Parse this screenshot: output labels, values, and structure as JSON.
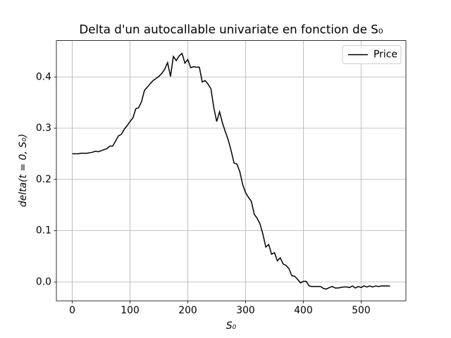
{
  "chart_data": {
    "type": "line",
    "title": "Delta d'un autocallable univariate en fonction de S₀",
    "x_label": "S₀",
    "y_label": "delta(t = 0, S₀)",
    "x": [
      0,
      5,
      10,
      15,
      20,
      25,
      30,
      35,
      40,
      45,
      50,
      55,
      60,
      65,
      70,
      75,
      80,
      85,
      90,
      95,
      100,
      105,
      110,
      115,
      120,
      125,
      130,
      135,
      140,
      145,
      150,
      155,
      160,
      165,
      170,
      175,
      180,
      185,
      190,
      195,
      200,
      205,
      210,
      215,
      220,
      225,
      230,
      235,
      240,
      245,
      250,
      255,
      260,
      265,
      270,
      275,
      280,
      285,
      290,
      295,
      300,
      305,
      310,
      315,
      320,
      325,
      330,
      335,
      340,
      345,
      350,
      355,
      360,
      365,
      370,
      375,
      380,
      385,
      390,
      395,
      400,
      405,
      410,
      415,
      420,
      425,
      430,
      435,
      440,
      445,
      450,
      455,
      460,
      465,
      470,
      475,
      480,
      485,
      490,
      495,
      500,
      505,
      510,
      515,
      520,
      525,
      530,
      535,
      540,
      545,
      550
    ],
    "series": [
      {
        "name": "Price",
        "color": "#000000",
        "values": [
          0.25,
          0.25,
          0.25,
          0.251,
          0.251,
          0.251,
          0.252,
          0.253,
          0.255,
          0.254,
          0.256,
          0.258,
          0.26,
          0.265,
          0.265,
          0.275,
          0.285,
          0.288,
          0.298,
          0.305,
          0.313,
          0.32,
          0.338,
          0.34,
          0.352,
          0.374,
          0.38,
          0.387,
          0.393,
          0.397,
          0.401,
          0.407,
          0.415,
          0.428,
          0.401,
          0.44,
          0.432,
          0.441,
          0.446,
          0.427,
          0.434,
          0.418,
          0.42,
          0.419,
          0.419,
          0.39,
          0.393,
          0.386,
          0.377,
          0.34,
          0.313,
          0.332,
          0.31,
          0.293,
          0.277,
          0.256,
          0.232,
          0.23,
          0.215,
          0.19,
          0.174,
          0.165,
          0.157,
          0.132,
          0.124,
          0.113,
          0.093,
          0.068,
          0.073,
          0.054,
          0.057,
          0.041,
          0.047,
          0.035,
          0.032,
          0.026,
          0.012,
          0.011,
          0.005,
          -0.002,
          0.001,
          0.001,
          -0.008,
          -0.009,
          -0.009,
          -0.009,
          -0.009,
          -0.013,
          -0.014,
          -0.011,
          -0.009,
          -0.012,
          -0.012,
          -0.011,
          -0.01,
          -0.01,
          -0.011,
          -0.008,
          -0.012,
          -0.009,
          -0.011,
          -0.008,
          -0.01,
          -0.008,
          -0.01,
          -0.008,
          -0.009,
          -0.008,
          -0.008,
          -0.008,
          -0.008
        ]
      }
    ],
    "xlim": [
      -27.5,
      577.5
    ],
    "ylim": [
      -0.037,
      0.471
    ],
    "xticks": [
      0,
      100,
      200,
      300,
      400,
      500
    ],
    "yticks": [
      {
        "value": 0,
        "label": "0.0"
      },
      0.1,
      0.2,
      0.3,
      0.4
    ],
    "grid": true,
    "legend": "upper right"
  }
}
